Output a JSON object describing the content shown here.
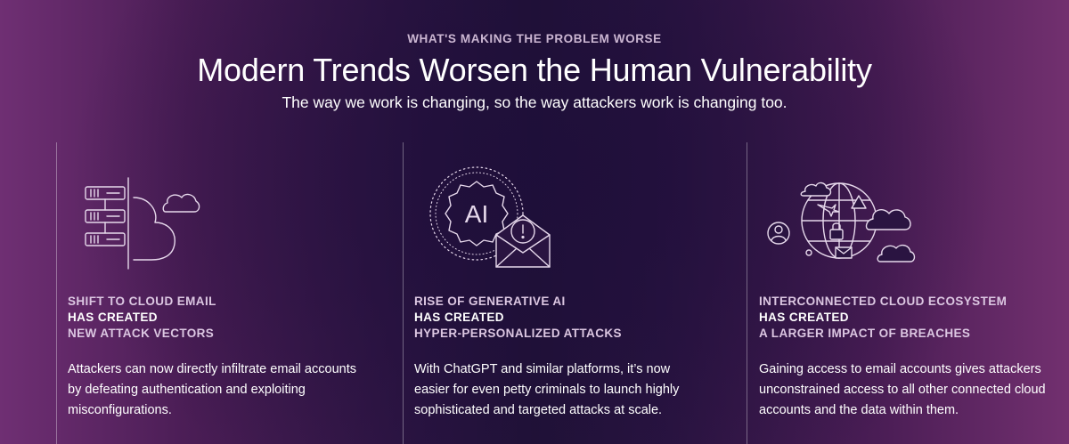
{
  "header": {
    "eyebrow": "WHAT'S MAKING THE PROBLEM WORSE",
    "title": "Modern Trends Worsen the Human Vulnerability",
    "subtitle": "The way we work is changing, so the way attackers work is changing too."
  },
  "columns": [
    {
      "icon": "cloud-server-icon",
      "heading_line1": "SHIFT TO CLOUD EMAIL",
      "heading_line2": "HAS CREATED",
      "heading_line3": "NEW ATTACK VECTORS",
      "body": "Attackers can now directly infiltrate email accounts by defeating authentication and exploiting misconfigurations."
    },
    {
      "icon": "ai-email-alert-icon",
      "icon_text": "AI",
      "heading_line1": "RISE OF GENERATIVE AI",
      "heading_line2": "HAS CREATED",
      "heading_line3": "HYPER-PERSONALIZED ATTACKS",
      "body": "With ChatGPT and similar platforms, it’s now easier for even petty criminals to launch highly sophisticated and targeted attacks at scale."
    },
    {
      "icon": "cloud-ecosystem-globe-icon",
      "heading_line1": "INTERCONNECTED CLOUD ECOSYSTEM",
      "heading_line2": "HAS CREATED",
      "heading_line3": "A LARGER IMPACT OF BREACHES",
      "body": "Gaining access to email accounts gives attackers unconstrained access to all other connected cloud accounts and the data within them."
    }
  ],
  "colors": {
    "accent_text": "#dcc7e2",
    "eyebrow": "#cbb6d2",
    "icon_stroke": "#e7d9ec"
  }
}
